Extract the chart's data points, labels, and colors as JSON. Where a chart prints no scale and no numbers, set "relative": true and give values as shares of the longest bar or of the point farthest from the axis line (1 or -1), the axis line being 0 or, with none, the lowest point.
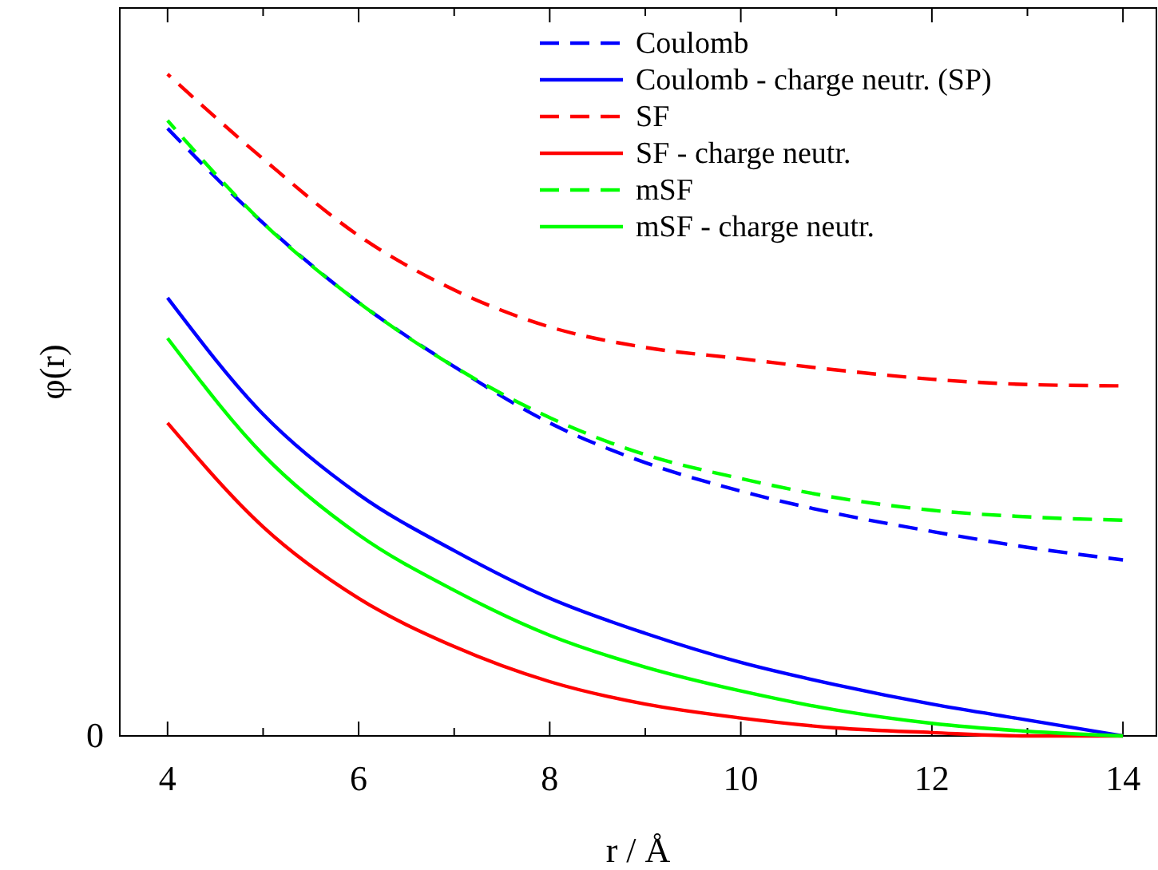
{
  "chart_data": {
    "type": "line",
    "relative": true,
    "xlabel": "r / Å",
    "ylabel": "φ(r)",
    "annotations": [
      "0"
    ],
    "x": [
      4,
      5,
      6,
      7,
      8,
      9,
      10,
      11,
      12,
      13,
      14
    ],
    "xlim": [
      3.5,
      14.35
    ],
    "xticks": [
      4,
      {
        "value": 5,
        "label": null
      },
      6,
      {
        "value": 7,
        "label": null
      },
      8,
      {
        "value": 9,
        "label": null
      },
      10,
      {
        "value": 11,
        "label": null
      },
      12,
      {
        "value": 13,
        "label": null
      },
      14
    ],
    "legend": "top right",
    "grid": false,
    "series": [
      {
        "name": "Coulomb",
        "color": "#0000ff",
        "line_style": "dashed",
        "values": [
          0.918,
          0.775,
          0.655,
          0.558,
          0.473,
          0.413,
          0.37,
          0.336,
          0.309,
          0.285,
          0.266
        ]
      },
      {
        "name": "Coulomb - charge neutr. (SP)",
        "color": "#0000ff",
        "line_style": "solid",
        "values": [
          0.662,
          0.486,
          0.365,
          0.28,
          0.208,
          0.155,
          0.111,
          0.077,
          0.048,
          0.024,
          0
        ]
      },
      {
        "name": "SF",
        "color": "#ff0000",
        "line_style": "dashed",
        "values": [
          1,
          0.872,
          0.756,
          0.674,
          0.618,
          0.587,
          0.57,
          0.553,
          0.539,
          0.531,
          0.529
        ]
      },
      {
        "name": "SF - charge neutr.",
        "color": "#ff0000",
        "line_style": "solid",
        "values": [
          0.473,
          0.316,
          0.208,
          0.135,
          0.082,
          0.048,
          0.027,
          0.012,
          0.005,
          0,
          0
        ]
      },
      {
        "name": "mSF",
        "color": "#00ff00",
        "line_style": "dashed",
        "values": [
          0.93,
          0.775,
          0.655,
          0.558,
          0.481,
          0.425,
          0.389,
          0.36,
          0.341,
          0.331,
          0.326
        ]
      },
      {
        "name": "mSF - charge neutr.",
        "color": "#00ff00",
        "line_style": "solid",
        "values": [
          0.601,
          0.425,
          0.304,
          0.22,
          0.152,
          0.104,
          0.068,
          0.039,
          0.019,
          0.007,
          0
        ]
      }
    ]
  }
}
